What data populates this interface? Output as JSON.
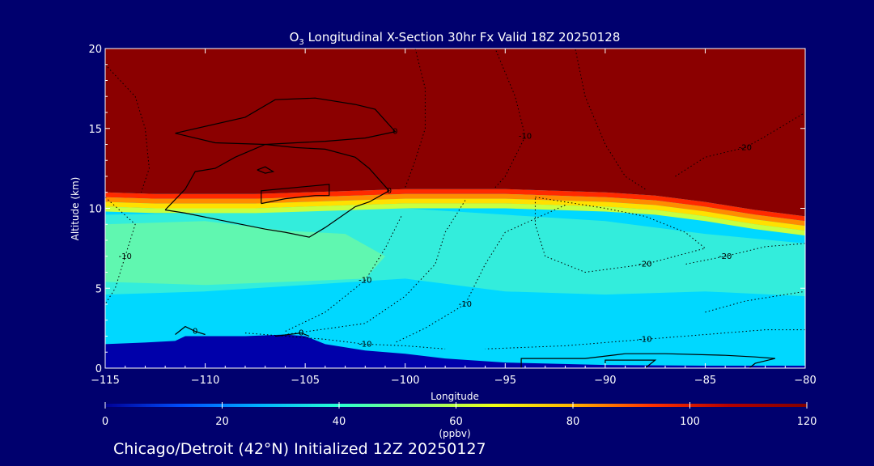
{
  "chart_data": {
    "type": "heatmap",
    "title": "O",
    "title_sub": "3",
    "title_rest": " Longitudinal X-Section 30hr  Fx Valid 18Z 20250128",
    "xlabel": "Longitude",
    "ylabel": "Altitude (km)",
    "xlim": [
      -115,
      -80
    ],
    "ylim": [
      0,
      20
    ],
    "x_ticks": [
      -115,
      -110,
      -105,
      -100,
      -95,
      -90,
      -85,
      -80
    ],
    "x_tick_labels": [
      "−115",
      "−110",
      "−105",
      "−100",
      "−95",
      "−90",
      "−85",
      "−80"
    ],
    "y_ticks": [
      0,
      5,
      10,
      15,
      20
    ],
    "y_tick_labels": [
      "0",
      "5",
      "10",
      "15",
      "20"
    ],
    "colorbar": {
      "ticks": [
        0,
        20,
        40,
        60,
        80,
        100,
        120
      ],
      "tick_labels": [
        "0",
        "20",
        "40",
        "60",
        "80",
        "100",
        "120"
      ],
      "label": "(ppbv)",
      "range": [
        0,
        120
      ],
      "colors": [
        "#000096",
        "#0050ff",
        "#00b4ff",
        "#28ffd2",
        "#8cff78",
        "#f0ff14",
        "#ffb400",
        "#ff3200",
        "#b40000",
        "#820000"
      ]
    },
    "fill_levels": [
      {
        "value": 10,
        "color": "#0000aa"
      },
      {
        "value": 22,
        "color": "#00d8ff"
      },
      {
        "value": 38,
        "color": "#38f0d8"
      },
      {
        "value": 48,
        "color": "#68f8a8"
      },
      {
        "value": 118,
        "color": "#8b0000"
      }
    ],
    "tropopause": [
      [
        -115,
        11.0
      ],
      [
        -112.5,
        10.9
      ],
      [
        -110,
        10.9
      ],
      [
        -107.5,
        10.9
      ],
      [
        -105,
        11.0
      ],
      [
        -102.5,
        11.1
      ],
      [
        -100,
        11.2
      ],
      [
        -97.5,
        11.2
      ],
      [
        -95,
        11.2
      ],
      [
        -92.5,
        11.1
      ],
      [
        -90,
        11.0
      ],
      [
        -87.5,
        10.8
      ],
      [
        -85,
        10.4
      ],
      [
        -82.5,
        9.9
      ],
      [
        -80,
        9.5
      ]
    ],
    "terrain": [
      [
        -115,
        1.5
      ],
      [
        -113,
        1.6
      ],
      [
        -111.5,
        1.7
      ],
      [
        -111,
        2.0
      ],
      [
        -110,
        2.0
      ],
      [
        -108,
        2.0
      ],
      [
        -106,
        2.1
      ],
      [
        -105,
        2.0
      ],
      [
        -104,
        1.5
      ],
      [
        -102,
        1.1
      ],
      [
        -100,
        0.9
      ],
      [
        -98,
        0.6
      ],
      [
        -95,
        0.35
      ],
      [
        -90,
        0.2
      ],
      [
        -85,
        0.15
      ],
      [
        -80,
        0.15
      ]
    ],
    "contours_solid": [
      {
        "label": "0",
        "points": [
          [
            -111.5,
            14.7
          ],
          [
            -108,
            15.7
          ],
          [
            -106.5,
            16.8
          ],
          [
            -104.5,
            16.9
          ],
          [
            -102.5,
            16.5
          ],
          [
            -101.5,
            16.2
          ],
          [
            -100.5,
            14.8
          ],
          [
            -102,
            14.4
          ],
          [
            -104,
            14.2
          ],
          [
            -107,
            14.0
          ],
          [
            -109.5,
            14.1
          ],
          [
            -111.5,
            14.7
          ]
        ]
      },
      {
        "label": "0",
        "points": [
          [
            -112,
            9.9
          ],
          [
            -111,
            11.2
          ],
          [
            -110.5,
            12.3
          ],
          [
            -109.5,
            12.5
          ],
          [
            -108.5,
            13.2
          ],
          [
            -107,
            14.0
          ],
          [
            -105.5,
            13.8
          ],
          [
            -104,
            13.7
          ],
          [
            -102.5,
            13.2
          ],
          [
            -101.8,
            12.5
          ],
          [
            -100.8,
            11.1
          ],
          [
            -101.8,
            10.4
          ],
          [
            -102.5,
            10.1
          ],
          [
            -104,
            8.8
          ],
          [
            -104.8,
            8.2
          ],
          [
            -106,
            8.5
          ],
          [
            -107,
            8.7
          ],
          [
            -109,
            9.2
          ],
          [
            -111,
            9.7
          ],
          [
            -112,
            9.9
          ]
        ]
      },
      {
        "label": "",
        "points": [
          [
            -107.4,
            12.4
          ],
          [
            -107,
            12.6
          ],
          [
            -106.6,
            12.3
          ],
          [
            -107,
            12.2
          ],
          [
            -107.4,
            12.4
          ]
        ]
      },
      {
        "label": "",
        "points": [
          [
            -107.2,
            10.3
          ],
          [
            -107.2,
            11.1
          ],
          [
            -105.5,
            11.3
          ],
          [
            -103.8,
            11.5
          ],
          [
            -103.8,
            10.8
          ],
          [
            -104.5,
            10.8
          ],
          [
            -106,
            10.6
          ],
          [
            -107.2,
            10.3
          ]
        ]
      },
      {
        "label": "0",
        "points": [
          [
            -111.5,
            2.1
          ],
          [
            -111,
            2.6
          ],
          [
            -110.5,
            2.3
          ],
          [
            -110,
            2.1
          ]
        ]
      },
      {
        "label": "0",
        "points": [
          [
            -106.5,
            2.0
          ],
          [
            -105.2,
            2.2
          ],
          [
            -104.8,
            2.0
          ]
        ]
      },
      {
        "label": "",
        "points": [
          [
            -94.2,
            0.0
          ],
          [
            -94.2,
            0.6
          ],
          [
            -91,
            0.6
          ],
          [
            -89,
            0.9
          ],
          [
            -87,
            0.9
          ],
          [
            -84,
            0.8
          ],
          [
            -82.5,
            0.7
          ],
          [
            -81.5,
            0.6
          ],
          [
            -82.5,
            0.3
          ],
          [
            -82.8,
            0.0
          ]
        ]
      },
      {
        "label": "",
        "points": [
          [
            -90,
            0.3
          ],
          [
            -90,
            0.5
          ],
          [
            -88.5,
            0.5
          ],
          [
            -87.5,
            0.5
          ],
          [
            -88,
            0.0
          ]
        ]
      }
    ],
    "contours_dotted": [
      {
        "label": "-10",
        "points": [
          [
            -115,
            10.7
          ],
          [
            -113.5,
            9.0
          ],
          [
            -114,
            7.0
          ],
          [
            -114.5,
            5.0
          ],
          [
            -115,
            4.0
          ]
        ]
      },
      {
        "label": "",
        "points": [
          [
            -115,
            19.0
          ],
          [
            -113.5,
            17.0
          ],
          [
            -113,
            15.0
          ],
          [
            -112.8,
            12.5
          ],
          [
            -113.2,
            11.0
          ]
        ]
      },
      {
        "label": "",
        "points": [
          [
            -99.5,
            20.0
          ],
          [
            -99,
            17.5
          ],
          [
            -99,
            15.0
          ],
          [
            -99.5,
            13.0
          ],
          [
            -100,
            11.3
          ]
        ]
      },
      {
        "label": "-10",
        "points": [
          [
            -100.2,
            9.5
          ],
          [
            -101,
            7.5
          ],
          [
            -102,
            5.5
          ],
          [
            -104,
            3.5
          ],
          [
            -106,
            2.3
          ]
        ]
      },
      {
        "label": "-10",
        "points": [
          [
            -95.5,
            11.3
          ],
          [
            -95,
            12.0
          ],
          [
            -94,
            14.5
          ],
          [
            -94.5,
            17.0
          ],
          [
            -95.5,
            20.0
          ]
        ]
      },
      {
        "label": "",
        "points": [
          [
            -97,
            10.5
          ],
          [
            -98,
            8.5
          ],
          [
            -98.5,
            6.5
          ],
          [
            -100,
            4.5
          ],
          [
            -102,
            2.8
          ],
          [
            -106,
            2.1
          ]
        ]
      },
      {
        "label": "-10",
        "points": [
          [
            -92,
            10.2
          ],
          [
            -95,
            8.5
          ],
          [
            -96,
            6.5
          ],
          [
            -97,
            4.0
          ],
          [
            -99,
            2.5
          ],
          [
            -100.5,
            1.6
          ]
        ]
      },
      {
        "label": "-20",
        "points": [
          [
            -93.5,
            10.7
          ],
          [
            -90,
            10.0
          ],
          [
            -88,
            9.5
          ],
          [
            -86,
            8.5
          ],
          [
            -85,
            7.5
          ],
          [
            -88,
            6.5
          ],
          [
            -91,
            6.0
          ],
          [
            -93,
            7.0
          ],
          [
            -93.5,
            9.0
          ],
          [
            -93.5,
            10.7
          ]
        ]
      },
      {
        "label": "-20",
        "points": [
          [
            -86.5,
            12.0
          ],
          [
            -85,
            13.2
          ],
          [
            -83,
            13.8
          ],
          [
            -82,
            14.5
          ],
          [
            -80,
            16.0
          ]
        ]
      },
      {
        "label": "",
        "points": [
          [
            -88,
            11.2
          ],
          [
            -89,
            12.0
          ],
          [
            -90,
            14.0
          ],
          [
            -91,
            17.0
          ],
          [
            -91.5,
            20.0
          ]
        ]
      },
      {
        "label": "-20",
        "points": [
          [
            -80,
            7.8
          ],
          [
            -82,
            7.6
          ],
          [
            -84,
            7.0
          ],
          [
            -86,
            6.5
          ]
        ]
      },
      {
        "label": "-10",
        "points": [
          [
            -80,
            2.4
          ],
          [
            -82,
            2.4
          ],
          [
            -85,
            2.1
          ],
          [
            -88,
            1.8
          ],
          [
            -92,
            1.4
          ],
          [
            -96,
            1.2
          ]
        ]
      },
      {
        "label": "-10",
        "points": [
          [
            -108,
            2.2
          ],
          [
            -104,
            1.8
          ],
          [
            -102,
            1.5
          ],
          [
            -100,
            1.4
          ],
          [
            -98,
            1.2
          ]
        ]
      },
      {
        "label": "",
        "points": [
          [
            -85,
            3.5
          ],
          [
            -83,
            4.2
          ],
          [
            -81,
            4.6
          ],
          [
            -80,
            4.8
          ]
        ]
      }
    ]
  },
  "footer": {
    "text": "Chicago/Detroit (42°N) Initialized 12Z 20250127"
  }
}
